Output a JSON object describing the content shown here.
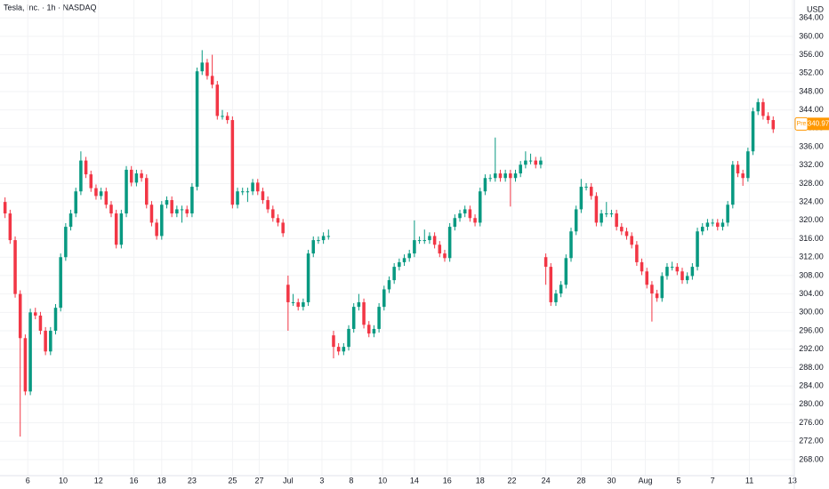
{
  "chart_data": {
    "type": "candlestick",
    "title": "Tesla, Inc. · 1h · NASDAQ",
    "currency": "USD",
    "up_color": "#089981",
    "down_color": "#f23645",
    "grid": true,
    "ylim": [
      264.5,
      367.9
    ],
    "yticks": [
      {
        "value": 268,
        "label": "268.00"
      },
      {
        "value": 272,
        "label": "272.00"
      },
      {
        "value": 276,
        "label": "276.00"
      },
      {
        "value": 280,
        "label": "280.00"
      },
      {
        "value": 284,
        "label": "284.00"
      },
      {
        "value": 288,
        "label": "288.00"
      },
      {
        "value": 292,
        "label": "292.00"
      },
      {
        "value": 296,
        "label": "296.00"
      },
      {
        "value": 300,
        "label": "300.00"
      },
      {
        "value": 304,
        "label": "304.00"
      },
      {
        "value": 308,
        "label": "308.00"
      },
      {
        "value": 312,
        "label": "312.00"
      },
      {
        "value": 316,
        "label": "316.00"
      },
      {
        "value": 320,
        "label": "320.00"
      },
      {
        "value": 324,
        "label": "324.00"
      },
      {
        "value": 328,
        "label": "328.00"
      },
      {
        "value": 332,
        "label": "332.00"
      },
      {
        "value": 336,
        "label": "336.00"
      },
      {
        "value": 340,
        "label": "340.00"
      },
      {
        "value": 344,
        "label": "344.00"
      },
      {
        "value": 348,
        "label": "348.00"
      },
      {
        "value": 352,
        "label": "352.00"
      },
      {
        "value": 356,
        "label": "356.00"
      },
      {
        "value": 360,
        "label": "360.00"
      },
      {
        "value": 364,
        "label": "364.00"
      }
    ],
    "xlim": [
      0,
      157
    ],
    "xticks": [
      {
        "value": 5.5,
        "label": "6"
      },
      {
        "value": 12.5,
        "label": "10"
      },
      {
        "value": 19.5,
        "label": "12"
      },
      {
        "value": 26.5,
        "label": "16"
      },
      {
        "value": 32,
        "label": "18"
      },
      {
        "value": 38,
        "label": "23"
      },
      {
        "value": 46,
        "label": "25"
      },
      {
        "value": 51.3,
        "label": "27"
      },
      {
        "value": 57,
        "label": "Jul"
      },
      {
        "value": 63.7,
        "label": "3"
      },
      {
        "value": 69.5,
        "label": "8"
      },
      {
        "value": 75.7,
        "label": "10"
      },
      {
        "value": 82,
        "label": "14"
      },
      {
        "value": 88.5,
        "label": "16"
      },
      {
        "value": 95,
        "label": "18"
      },
      {
        "value": 101.3,
        "label": "22"
      },
      {
        "value": 108,
        "label": "24"
      },
      {
        "value": 115,
        "label": "28"
      },
      {
        "value": 121,
        "label": "30"
      },
      {
        "value": 127.7,
        "label": "Aug"
      },
      {
        "value": 134.3,
        "label": "5"
      },
      {
        "value": 141,
        "label": "7"
      },
      {
        "value": 148.3,
        "label": "11"
      },
      {
        "value": 156.8,
        "label": "13"
      }
    ],
    "price_label": {
      "text": "Pre",
      "value": 340.97,
      "color": "#ff9800"
    },
    "candles": [
      [
        324,
        325,
        320.5,
        321.5
      ],
      [
        321.5,
        322.3,
        314.9,
        315.7
      ],
      [
        315.7,
        316.5,
        303.2,
        304
      ],
      [
        304,
        304.8,
        273,
        294.4
      ],
      [
        294.4,
        295.2,
        282,
        282.8
      ],
      [
        282.8,
        300.8,
        282,
        300
      ],
      [
        300,
        301,
        298.5,
        299.3
      ],
      [
        299.3,
        300.1,
        295.2,
        296
      ],
      [
        296,
        296.8,
        290.7,
        291.5
      ],
      [
        291.5,
        296.8,
        290.7,
        296
      ],
      [
        296,
        301.8,
        295.2,
        301
      ],
      [
        301,
        312.8,
        300.2,
        312
      ],
      [
        312,
        319.4,
        311.2,
        318.6
      ],
      [
        318.6,
        322.3,
        317.8,
        321.5
      ],
      [
        321.5,
        327.1,
        320.7,
        326.3
      ],
      [
        326.3,
        335,
        325.5,
        333
      ],
      [
        333,
        333.8,
        329.2,
        330
      ],
      [
        330,
        330.8,
        326.2,
        327
      ],
      [
        327,
        327.8,
        324.5,
        325.3
      ],
      [
        325.3,
        327.1,
        324.5,
        326.3
      ],
      [
        326.3,
        327.1,
        322.6,
        323.4
      ],
      [
        323.4,
        324.2,
        320.7,
        321.5
      ],
      [
        321.5,
        322.3,
        313.9,
        314.7
      ],
      [
        314.7,
        322.3,
        313.9,
        321.5
      ],
      [
        321.5,
        331.8,
        320.7,
        331
      ],
      [
        331,
        331.8,
        327.4,
        328.2
      ],
      [
        328.2,
        331,
        327.4,
        330.2
      ],
      [
        330.2,
        331,
        328.4,
        329.2
      ],
      [
        329.2,
        330,
        322.6,
        323.4
      ],
      [
        323.4,
        324.2,
        318.7,
        319.5
      ],
      [
        319.5,
        320.3,
        315.8,
        316.6
      ],
      [
        316.6,
        324.2,
        315.8,
        323.4
      ],
      [
        323.4,
        325.2,
        322.6,
        324.4
      ],
      [
        324.4,
        325.2,
        320.7,
        321.5
      ],
      [
        321.5,
        323.2,
        320.7,
        322.4
      ],
      [
        322.4,
        323.2,
        319.5,
        322.4
      ],
      [
        322.4,
        323.2,
        320.7,
        321.5
      ],
      [
        321.5,
        328.1,
        320.7,
        327.3
      ],
      [
        327.3,
        353.2,
        326.5,
        352.4
      ],
      [
        352.4,
        357,
        351.6,
        354.3
      ],
      [
        354.3,
        355.1,
        350.6,
        351.4
      ],
      [
        351.4,
        356,
        348.7,
        349.5
      ],
      [
        349.5,
        350.3,
        341.9,
        342.7
      ],
      [
        342.7,
        344,
        341.9,
        342.7
      ],
      [
        342.7,
        343.5,
        341,
        341.8
      ],
      [
        341.8,
        342.6,
        322.6,
        323.4
      ],
      [
        323.4,
        327.1,
        322.6,
        326.3
      ],
      [
        326.3,
        327.1,
        325.5,
        326.3
      ],
      [
        326.3,
        327.1,
        324,
        326.3
      ],
      [
        326.3,
        329,
        325.5,
        328.2
      ],
      [
        328.2,
        329,
        325.5,
        326.3
      ],
      [
        326.3,
        327.1,
        323.6,
        324.4
      ],
      [
        324.4,
        325.2,
        321.6,
        322.4
      ],
      [
        322.4,
        323.2,
        319.7,
        320.5
      ],
      [
        320.5,
        321.3,
        318.7,
        319.5
      ],
      [
        319.5,
        320.3,
        316.4,
        317.2
      ],
      [
        306,
        308,
        296,
        302.2
      ],
      [
        302.2,
        304,
        301.4,
        302.2
      ],
      [
        302.2,
        303,
        300.4,
        301.2
      ],
      [
        301.2,
        303,
        300.4,
        302.2
      ],
      [
        302.2,
        313.6,
        301.4,
        312.8
      ],
      [
        312.8,
        316.5,
        312,
        315.7
      ],
      [
        315.7,
        316.5,
        314.9,
        315.7
      ],
      [
        315.7,
        317.4,
        314.9,
        316.6
      ],
      [
        316.6,
        318,
        315.8,
        316.6
      ],
      [
        295,
        296,
        290,
        292.5
      ],
      [
        292.5,
        293.3,
        290.7,
        291.5
      ],
      [
        291.5,
        293.3,
        290.7,
        292.5
      ],
      [
        292.5,
        297.2,
        291.7,
        296.4
      ],
      [
        296.4,
        302,
        295.6,
        301.2
      ],
      [
        301.2,
        304,
        300.4,
        302.2
      ],
      [
        302.2,
        303,
        296.5,
        297.3
      ],
      [
        297.3,
        298.1,
        294.6,
        295.4
      ],
      [
        295.4,
        297.2,
        294.6,
        296.4
      ],
      [
        296.4,
        302,
        295.6,
        301.2
      ],
      [
        301.2,
        305.8,
        300.4,
        305
      ],
      [
        305,
        307.8,
        304.2,
        307
      ],
      [
        307,
        310.7,
        306.2,
        309.9
      ],
      [
        309.9,
        311.7,
        309.1,
        310.9
      ],
      [
        310.9,
        312.6,
        310.1,
        311.8
      ],
      [
        311.8,
        313.6,
        311,
        312.8
      ],
      [
        312.8,
        320,
        312,
        315.7
      ],
      [
        315.7,
        316.5,
        314.9,
        315.7
      ],
      [
        315.7,
        318,
        314.9,
        315.7
      ],
      [
        315.7,
        317.4,
        314.9,
        316.6
      ],
      [
        316.6,
        317.4,
        313.9,
        314.7
      ],
      [
        314.7,
        315.5,
        312,
        312.8
      ],
      [
        312.8,
        313.6,
        311,
        311.8
      ],
      [
        311.8,
        319.4,
        311,
        318.6
      ],
      [
        318.6,
        321.3,
        317.8,
        320.5
      ],
      [
        320.5,
        322.3,
        319.7,
        321.5
      ],
      [
        321.5,
        323.2,
        320.7,
        322.4
      ],
      [
        322.4,
        323.2,
        319.7,
        320.5
      ],
      [
        320.5,
        321.3,
        318.7,
        319.5
      ],
      [
        319.5,
        327.1,
        318.7,
        326.3
      ],
      [
        326.3,
        330,
        325.5,
        329.2
      ],
      [
        329.2,
        330,
        328.4,
        329.2
      ],
      [
        329.2,
        338,
        328.4,
        330.2
      ],
      [
        330.2,
        331,
        328.4,
        329.2
      ],
      [
        329.2,
        331,
        328.4,
        330.2
      ],
      [
        330.2,
        331,
        323,
        329.2
      ],
      [
        329.2,
        331,
        328.4,
        330.2
      ],
      [
        330.2,
        332.9,
        329.4,
        332.1
      ],
      [
        332.1,
        335,
        331.3,
        333
      ],
      [
        333,
        334.5,
        332.2,
        333
      ],
      [
        333,
        333.8,
        331.3,
        332.1
      ],
      [
        332.1,
        333.8,
        331.3,
        333
      ],
      [
        312,
        312.8,
        306,
        309.9
      ],
      [
        309.9,
        310.7,
        301.4,
        302.2
      ],
      [
        302.2,
        304.9,
        301.4,
        304.1
      ],
      [
        304.1,
        306.8,
        303.3,
        306
      ],
      [
        306,
        312.6,
        305.2,
        311.8
      ],
      [
        311.8,
        318.4,
        311,
        317.6
      ],
      [
        317.6,
        323.2,
        316.8,
        322.4
      ],
      [
        322.4,
        329,
        321.6,
        327.3
      ],
      [
        327.3,
        328.1,
        326.5,
        327.3
      ],
      [
        327.3,
        328.1,
        324.5,
        325.3
      ],
      [
        325.3,
        326.1,
        318.7,
        319.5
      ],
      [
        319.5,
        322.3,
        318.7,
        321.5
      ],
      [
        321.5,
        324,
        320.7,
        321.5
      ],
      [
        321.5,
        322.3,
        320.7,
        321.5
      ],
      [
        321.5,
        322.3,
        317.8,
        318.6
      ],
      [
        318.6,
        319.4,
        316.8,
        317.6
      ],
      [
        317.6,
        318.4,
        315.8,
        316.6
      ],
      [
        316.6,
        317.4,
        313.9,
        314.7
      ],
      [
        314.7,
        315.5,
        310.1,
        310.9
      ],
      [
        310.9,
        311.7,
        308.1,
        308.9
      ],
      [
        308.9,
        309.7,
        305.2,
        306
      ],
      [
        306,
        306.8,
        298,
        304.1
      ],
      [
        304.1,
        304.9,
        302.3,
        303.1
      ],
      [
        303.1,
        308.7,
        302.3,
        307.9
      ],
      [
        307.9,
        310.7,
        307.1,
        309.9
      ],
      [
        309.9,
        311,
        309.1,
        309.9
      ],
      [
        309.9,
        310.7,
        308.1,
        308.9
      ],
      [
        308.9,
        309.7,
        306.2,
        307
      ],
      [
        307,
        308.7,
        306.2,
        307.9
      ],
      [
        307.9,
        310.7,
        307.1,
        309.9
      ],
      [
        309.9,
        318.4,
        309.1,
        317.6
      ],
      [
        317.6,
        319.4,
        316.8,
        318.6
      ],
      [
        318.6,
        320.3,
        317.8,
        319.5
      ],
      [
        319.5,
        320.3,
        318.7,
        319.5
      ],
      [
        319.5,
        320.3,
        317.8,
        318.6
      ],
      [
        318.6,
        320.3,
        317.8,
        319.5
      ],
      [
        319.5,
        324.2,
        318.7,
        323.4
      ],
      [
        323.4,
        332.9,
        322.6,
        332.1
      ],
      [
        332.1,
        332.9,
        329.4,
        330.2
      ],
      [
        330.2,
        331,
        327.5,
        329.2
      ],
      [
        329.2,
        335.8,
        328.4,
        335
      ],
      [
        335,
        344.5,
        334.2,
        343.7
      ],
      [
        343.7,
        346.5,
        342.9,
        345.7
      ],
      [
        345.7,
        346.5,
        341.9,
        342.7
      ],
      [
        342.7,
        343.5,
        341,
        341.8
      ],
      [
        341.8,
        342.6,
        339,
        339.8
      ]
    ]
  }
}
